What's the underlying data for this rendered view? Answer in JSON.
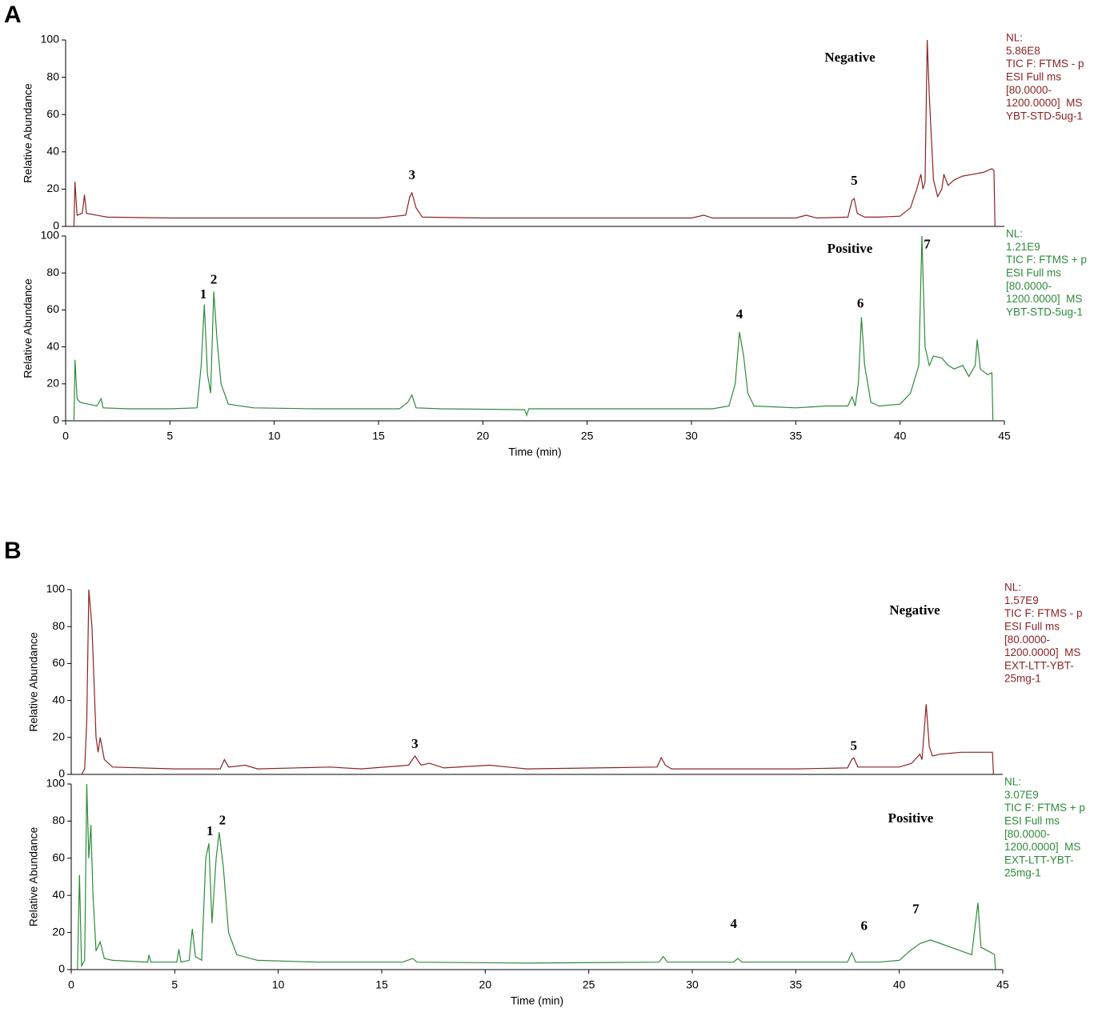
{
  "chart_data": [
    {
      "type": "line",
      "panel_label": "A",
      "mode_label": "Negative",
      "y_label": "Relative Abundance",
      "color": "#8b2323",
      "info": [
        "NL:",
        "5.86E8",
        "TIC F: FTMS - p",
        "ESI Full ms",
        "[80.0000-",
        "1200.0000]  MS",
        "YBT-STD-5ug-1"
      ],
      "xlim": [
        0,
        45
      ],
      "ylim": [
        0,
        100
      ],
      "yticks": [
        0,
        20,
        40,
        60,
        80,
        100
      ],
      "x": [
        0.4,
        0.45,
        0.55,
        0.8,
        0.9,
        1.0,
        2,
        5,
        10,
        15,
        16.3,
        16.5,
        16.6,
        16.8,
        17.1,
        20,
        25,
        30,
        30.6,
        31,
        35,
        35.5,
        36,
        37.5,
        37.7,
        37.8,
        37.95,
        38.3,
        39,
        40,
        40.5,
        40.8,
        41,
        41.1,
        41.2,
        41.3,
        41.4,
        41.6,
        41.8,
        42.0,
        42.1,
        42.3,
        42.6,
        43,
        43.5,
        44,
        44.4,
        44.5,
        44.55
      ],
      "values": [
        0,
        24,
        6,
        7,
        17,
        7,
        5,
        4.5,
        4.5,
        4.5,
        6,
        16,
        18,
        10,
        5,
        4.5,
        4.5,
        4.5,
        6,
        4.5,
        4.5,
        6,
        4.5,
        5,
        14,
        15,
        7,
        5,
        5,
        5.5,
        10,
        20,
        28,
        20,
        24,
        100,
        70,
        25,
        16,
        20,
        28,
        22,
        25,
        27,
        28,
        29,
        31,
        30,
        0
      ],
      "peaks": [
        {
          "label": "3",
          "x": 16.6,
          "y": 27
        },
        {
          "label": "5",
          "x": 37.8,
          "y": 24
        }
      ]
    },
    {
      "type": "line",
      "mode_label": "Positive",
      "y_label": "Relative Abundance",
      "x_label": "Time (min)",
      "color": "#2e8b3a",
      "info": [
        "NL:",
        "1.21E9",
        "TIC F: FTMS + p",
        "ESI Full ms",
        "[80.0000-",
        "1200.0000]  MS",
        "YBT-STD-5ug-1"
      ],
      "xlim": [
        0,
        45
      ],
      "xticks": [
        0,
        5,
        10,
        15,
        20,
        25,
        30,
        35,
        40,
        45
      ],
      "ylim": [
        0,
        100
      ],
      "yticks": [
        0,
        20,
        40,
        60,
        80,
        100
      ],
      "x": [
        0.4,
        0.45,
        0.55,
        0.7,
        1.5,
        1.7,
        1.8,
        3,
        5,
        6.3,
        6.5,
        6.65,
        6.8,
        6.95,
        7.1,
        7.25,
        7.45,
        7.8,
        9,
        12,
        16,
        16.4,
        16.6,
        16.8,
        18,
        22,
        22.1,
        22.2,
        27,
        31,
        31.8,
        32.1,
        32.3,
        32.5,
        32.7,
        33,
        35,
        36.5,
        37.5,
        37.7,
        37.85,
        38.0,
        38.15,
        38.3,
        38.6,
        39,
        40,
        40.5,
        40.9,
        41.05,
        41.2,
        41.4,
        41.6,
        42,
        42.3,
        42.6,
        43,
        43.3,
        43.6,
        43.7,
        43.85,
        44.2,
        44.4,
        44.45
      ],
      "values": [
        0,
        33,
        12,
        10,
        8,
        12,
        7,
        6.5,
        6.5,
        7,
        30,
        63,
        25,
        15,
        70,
        45,
        20,
        9,
        7,
        6.5,
        6.5,
        10,
        14,
        7,
        6.5,
        6,
        3,
        6.5,
        6.5,
        6.5,
        8,
        20,
        48,
        35,
        15,
        8,
        7,
        8,
        8,
        13,
        8,
        20,
        56,
        30,
        10,
        8,
        9,
        15,
        30,
        100,
        40,
        30,
        35,
        34,
        30,
        28,
        30,
        24,
        30,
        44,
        28,
        25,
        26,
        0
      ],
      "peaks": [
        {
          "label": "1",
          "x": 6.6,
          "y": 68
        },
        {
          "label": "2",
          "x": 7.1,
          "y": 76
        },
        {
          "label": "4",
          "x": 32.3,
          "y": 57
        },
        {
          "label": "6",
          "x": 38.1,
          "y": 63
        },
        {
          "label": "7",
          "x": 41.3,
          "y": 95
        }
      ]
    },
    {
      "type": "line",
      "panel_label": "B",
      "mode_label": "Negative",
      "y_label": "Relative Abundance",
      "color": "#8b2323",
      "info": [
        "NL:",
        "1.57E9",
        "TIC F: FTMS - p",
        "ESI Full ms",
        "[80.0000-",
        "1200.0000]  MS",
        "EXT-LTT-YBT-",
        "25mg-1"
      ],
      "xlim": [
        0,
        45
      ],
      "ylim": [
        0,
        100
      ],
      "yticks": [
        0,
        20,
        40,
        60,
        80,
        100
      ],
      "x": [
        0.4,
        0.5,
        0.65,
        0.75,
        0.85,
        1.0,
        1.1,
        1.2,
        1.3,
        1.4,
        1.6,
        2,
        5,
        7.2,
        7.4,
        7.6,
        8.4,
        9,
        12.5,
        14,
        16.3,
        16.6,
        16.9,
        17.3,
        18,
        20.2,
        22,
        28.3,
        28.5,
        28.7,
        29,
        35,
        37.5,
        37.7,
        37.8,
        38,
        39.2,
        40,
        40.6,
        41,
        41.1,
        41.3,
        41.45,
        41.6,
        42,
        43,
        44,
        44.5,
        44.55
      ],
      "values": [
        0,
        0,
        3,
        29,
        100,
        80,
        50,
        20,
        12,
        20,
        8,
        4,
        3,
        3,
        8,
        4,
        5,
        3,
        4,
        3,
        5,
        10,
        5,
        6,
        3.5,
        5,
        3,
        4,
        9,
        5,
        3,
        3,
        3.5,
        8,
        9,
        4,
        4,
        4,
        6,
        11,
        8,
        38,
        15,
        10,
        11,
        12,
        12,
        12,
        0
      ],
      "peaks": [
        {
          "label": "3",
          "x": 16.6,
          "y": 16
        },
        {
          "label": "5",
          "x": 37.8,
          "y": 15
        }
      ]
    },
    {
      "type": "line",
      "mode_label": "Positive",
      "y_label": "Relative Abundance",
      "x_label": "Time (min)",
      "color": "#2e8b3a",
      "info": [
        "NL:",
        "3.07E9",
        "TIC F: FTMS + p",
        "ESI Full ms",
        "[80.0000-",
        "1200.0000]  MS",
        "EXT-LTT-YBT-",
        "25mg-1"
      ],
      "xlim": [
        0,
        45
      ],
      "xticks": [
        0,
        5,
        10,
        15,
        20,
        25,
        30,
        35,
        40,
        45
      ],
      "ylim": [
        0,
        100
      ],
      "yticks": [
        0,
        20,
        40,
        60,
        80,
        100
      ],
      "x": [
        0.3,
        0.4,
        0.5,
        0.65,
        0.75,
        0.85,
        0.95,
        1.05,
        1.2,
        1.4,
        1.6,
        2,
        3.7,
        3.75,
        3.85,
        5.1,
        5.2,
        5.3,
        5.7,
        5.85,
        6.0,
        6.3,
        6.5,
        6.65,
        6.8,
        7.0,
        7.15,
        7.35,
        7.6,
        8,
        9,
        12,
        16,
        16.5,
        16.7,
        22,
        28.4,
        28.6,
        28.8,
        32,
        32.2,
        32.4,
        37.5,
        37.7,
        37.9,
        39,
        40,
        40.5,
        41,
        41.5,
        42,
        42.5,
        43,
        43.5,
        43.8,
        43.95,
        44.3,
        44.6,
        44.65
      ],
      "values": [
        0,
        51,
        2,
        5,
        100,
        60,
        78,
        40,
        10,
        15,
        6,
        5,
        4,
        8,
        4,
        4,
        11,
        4,
        5,
        22,
        7,
        5,
        60,
        68,
        25,
        60,
        74,
        55,
        20,
        8,
        5,
        4,
        4,
        6,
        4,
        3.5,
        4,
        7,
        4,
        4,
        6,
        4,
        4,
        9,
        4,
        4,
        5,
        10,
        14,
        16,
        14,
        12,
        10,
        8,
        36,
        12,
        10,
        8,
        0
      ],
      "peaks": [
        {
          "label": "1",
          "x": 6.7,
          "y": 74
        },
        {
          "label": "2",
          "x": 7.3,
          "y": 80
        },
        {
          "label": "4",
          "x": 32,
          "y": 24
        },
        {
          "label": "6",
          "x": 38.3,
          "y": 23
        },
        {
          "label": "7",
          "x": 40.8,
          "y": 32
        }
      ]
    }
  ]
}
